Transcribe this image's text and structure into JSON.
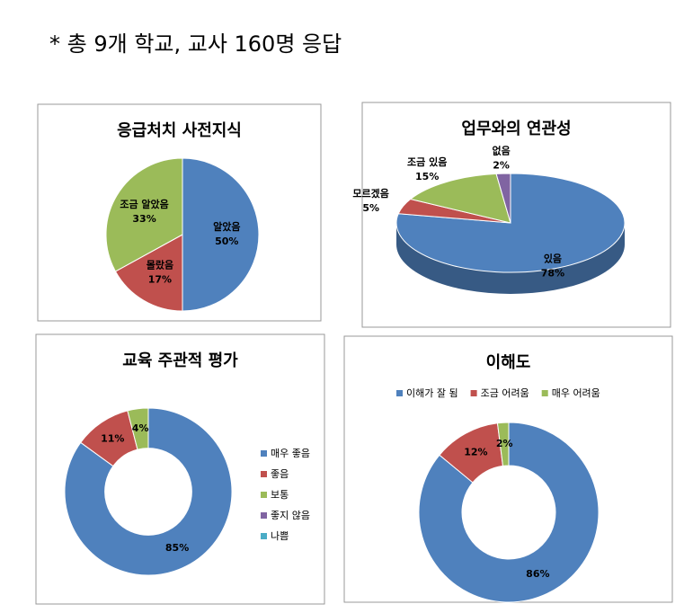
{
  "header": {
    "note": "* 총 9개 학교, 교사 160명 응답"
  },
  "chart_data": [
    {
      "type": "pie",
      "title": "응급처치 사전지식",
      "categories": [
        "알았음",
        "몰랐음",
        "조금 알았음"
      ],
      "values": [
        50,
        17,
        33
      ],
      "value_labels": [
        "50%",
        "17%",
        "33%"
      ],
      "colors": [
        "#4f81bd",
        "#c0504d",
        "#9bbb59"
      ],
      "legend": "none"
    },
    {
      "type": "pie",
      "3d": true,
      "title": "업무와의 연관성",
      "categories": [
        "있음",
        "모르겠음",
        "조금 있음",
        "없음"
      ],
      "values": [
        78,
        5,
        15,
        2
      ],
      "value_labels": [
        "78%",
        "5%",
        "15%",
        "2%"
      ],
      "colors": [
        "#4f81bd",
        "#c0504d",
        "#9bbb59",
        "#8064a2"
      ],
      "legend": "none"
    },
    {
      "type": "doughnut",
      "title": "교육 주관적 평가",
      "categories": [
        "매우 좋음",
        "좋음",
        "보통",
        "좋지 않음",
        "나쁨"
      ],
      "values": [
        85,
        11,
        4,
        0,
        0
      ],
      "value_labels": [
        "85%",
        "11%",
        "4%",
        null,
        null
      ],
      "colors": [
        "#4f81bd",
        "#c0504d",
        "#9bbb59",
        "#8064a2",
        "#4bacc6"
      ],
      "legend": "right"
    },
    {
      "type": "doughnut",
      "title": "이해도",
      "categories": [
        "이해가 잘 됨",
        "조금 어려움",
        "매우 어려움"
      ],
      "values": [
        86,
        12,
        2
      ],
      "value_labels": [
        "86%",
        "12%",
        "2%"
      ],
      "colors": [
        "#4f81bd",
        "#c0504d",
        "#9bbb59"
      ],
      "legend": "top"
    }
  ]
}
